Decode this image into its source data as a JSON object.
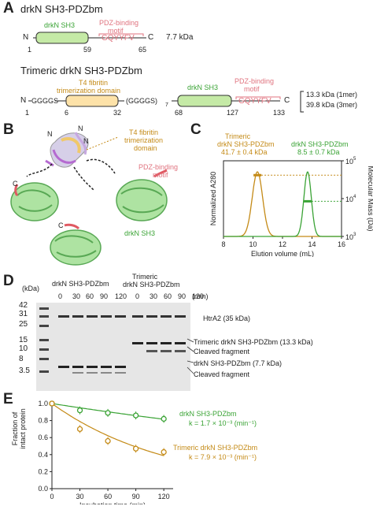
{
  "panelA": {
    "letter": "A",
    "title1": "drkN SH3-PDZbm",
    "sh3_label": "drkN SH3",
    "pdz_label_1": "PDZ-binding",
    "pdz_label_2": "motif",
    "seq": "GQYYFV",
    "n": "N",
    "c": "C",
    "kda": "7.7 kDa",
    "num1": "1",
    "num59": "59",
    "num65": "65",
    "title2": "Trimeric drkN SH3-PDZbm",
    "t4_1": "T4 fibritin",
    "t4_2": "trimerization domain",
    "gggg1": "GGGGS",
    "gggg2": "(GGGGS)",
    "sub7": "7",
    "tri_kda_1": "13.3 kDa (1mer)",
    "tri_kda_2": "39.8 kDa (3mer)",
    "n1": "1",
    "n6": "6",
    "n32": "32",
    "n68": "68",
    "n127": "127",
    "n133": "133"
  },
  "panelB": {
    "letter": "B",
    "t4_1": "T4 fibritin",
    "t4_2": "trimerization",
    "t4_3": "domain",
    "pdz_1": "PDZ-binding",
    "pdz_2": "motif",
    "sh3": "drkN SH3",
    "n": "N",
    "c": "C"
  },
  "panelC": {
    "letter": "C",
    "leg_tri_1": "Trimeric",
    "leg_tri_2": "drkN SH3-PDZbm",
    "leg_tri_3": "41.7 ± 0.4 kDa",
    "leg_mono_1": "drkN SH3-PDZbm",
    "leg_mono_2": "8.5 ± 0.7 kDa",
    "ylabel": "Normalized A280",
    "y2label": "Molecular Mass (Da)",
    "xlabel": "Elution volume (mL)",
    "xticks": [
      "8",
      "10",
      "12",
      "14",
      "16"
    ],
    "y2ticks": [
      "10",
      "10",
      "10"
    ],
    "y2exp": [
      "5",
      "4",
      "3"
    ]
  },
  "panelD": {
    "letter": "D",
    "head_mono": "drkN SH3-PDZbm",
    "head_tri_1": "Trimeric",
    "head_tri_2": "drkN SH3-PDZbm",
    "kda_label": "(kDa)",
    "min_label": "(min)",
    "times": [
      "0",
      "30",
      "60",
      "90",
      "120",
      "0",
      "30",
      "60",
      "90",
      "120"
    ],
    "markers": [
      "42",
      "31",
      "25",
      "15",
      "10",
      "8",
      "3.5"
    ],
    "lab_htra2": "HtrA2 (35 kDa)",
    "lab_tri": "Trimeric drkN SH3-PDZbm (13.3 kDa)",
    "lab_cleaved1": "Cleaved fragment",
    "lab_mono": "drkN SH3-PDZbm (7.7 kDa)",
    "lab_cleaved2": "Cleaved fragment"
  },
  "panelE": {
    "letter": "E",
    "ylabel_1": "Fraction of",
    "ylabel_2": "intact protein",
    "xlabel": "Incubation time (min)",
    "mono_label": "drkN SH3-PDZbm",
    "mono_k": "k = 1.7 × 10⁻³ (min⁻¹)",
    "tri_label": "Trimeric drkN SH3-PDZbm",
    "tri_k": "k = 7.9 × 10⁻³ (min⁻¹)"
  },
  "chart_data": [
    {
      "type": "line",
      "panel": "C",
      "xlabel": "Elution volume (mL)",
      "ylabel": "Normalized A280",
      "y2label": "Molecular Mass (Da)",
      "xlim": [
        8,
        16
      ],
      "y2lim_log": [
        1000,
        100000
      ],
      "x_ticks": [
        8,
        10,
        12,
        14,
        16
      ],
      "series": [
        {
          "name": "Trimeric drkN SH3-PDZbm",
          "color": "#c48a16",
          "peak_x": 10.3,
          "width": 0.35,
          "mass_kDa": 41.7
        },
        {
          "name": "drkN SH3-PDZbm",
          "color": "#3aa335",
          "peak_x": 13.7,
          "width": 0.25,
          "mass_kDa": 8.5
        }
      ]
    },
    {
      "type": "scatter",
      "panel": "E",
      "xlabel": "Incubation time (min)",
      "ylabel": "Fraction of intact protein",
      "xlim": [
        0,
        130
      ],
      "ylim": [
        0,
        1.0
      ],
      "x_ticks": [
        0,
        30,
        60,
        90,
        120
      ],
      "y_ticks": [
        0,
        0.2,
        0.4,
        0.6,
        0.8,
        1.0
      ],
      "series": [
        {
          "name": "drkN SH3-PDZbm",
          "color": "#3aa335",
          "x": [
            0,
            30,
            60,
            90,
            120
          ],
          "y": [
            1.0,
            0.92,
            0.89,
            0.86,
            0.82
          ],
          "k": 0.0017
        },
        {
          "name": "Trimeric drkN SH3-PDZbm",
          "color": "#c48a16",
          "x": [
            0,
            30,
            60,
            90,
            120
          ],
          "y": [
            1.0,
            0.7,
            0.56,
            0.47,
            0.43
          ],
          "k": 0.0079
        }
      ]
    }
  ]
}
